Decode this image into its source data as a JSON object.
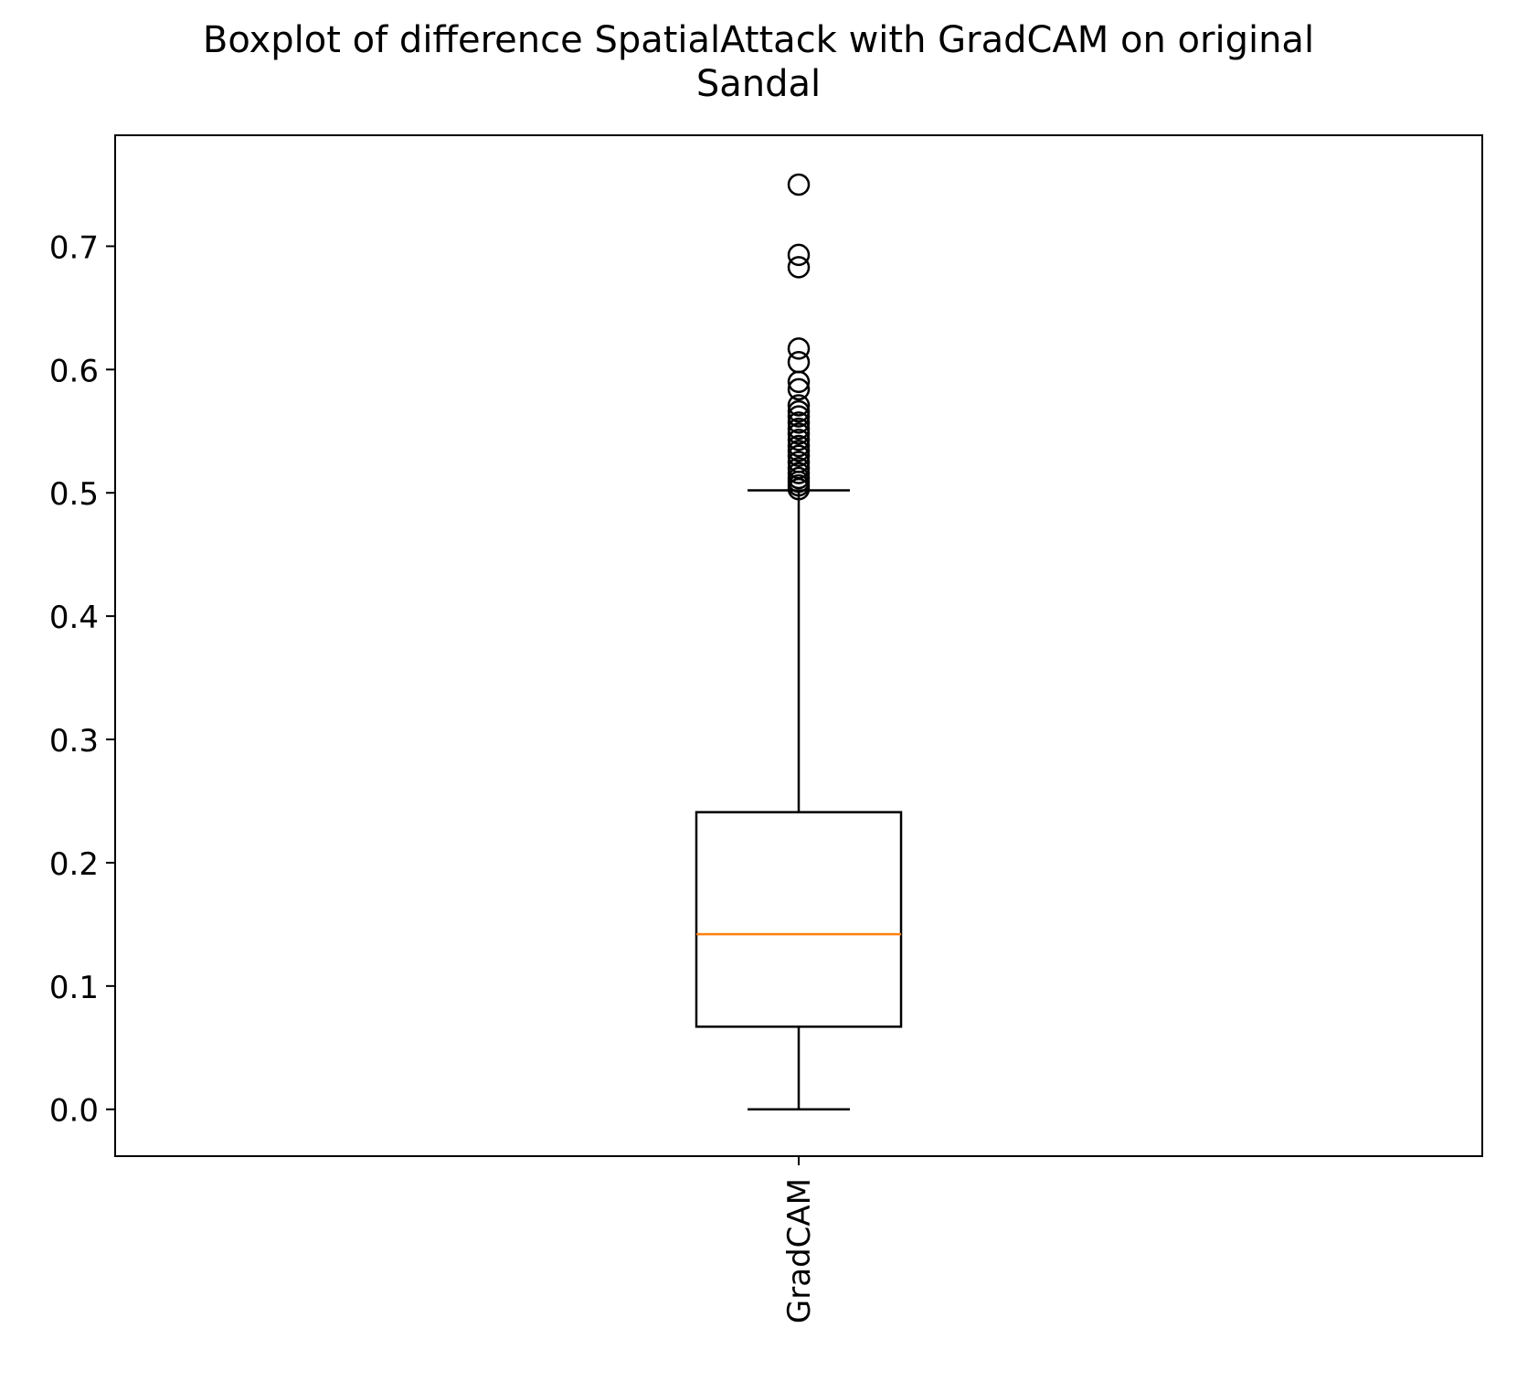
{
  "chart_data": {
    "type": "boxplot",
    "title_lines": [
      "Boxplot of difference SpatialAttack with GradCAM on original",
      "Sandal"
    ],
    "xlabel": "",
    "ylabel": "",
    "categories": [
      "GradCAM"
    ],
    "ylim": [
      -0.038,
      0.79
    ],
    "yticks": [
      0.0,
      0.1,
      0.2,
      0.3,
      0.4,
      0.5,
      0.6,
      0.7
    ],
    "ytick_labels": [
      "0.0",
      "0.1",
      "0.2",
      "0.3",
      "0.4",
      "0.5",
      "0.6",
      "0.7"
    ],
    "grid": false,
    "boxes": [
      {
        "name": "GradCAM",
        "whisker_low": 0.0,
        "q1": 0.067,
        "median": 0.142,
        "q3": 0.241,
        "whisker_high": 0.502,
        "outliers": [
          0.503,
          0.506,
          0.509,
          0.512,
          0.516,
          0.52,
          0.525,
          0.53,
          0.534,
          0.538,
          0.543,
          0.548,
          0.552,
          0.557,
          0.562,
          0.566,
          0.571,
          0.584,
          0.59,
          0.606,
          0.617,
          0.683,
          0.693,
          0.75
        ]
      }
    ],
    "colors": {
      "box": "#000000",
      "median": "#ff7f0e",
      "outlier": "#000000"
    }
  }
}
